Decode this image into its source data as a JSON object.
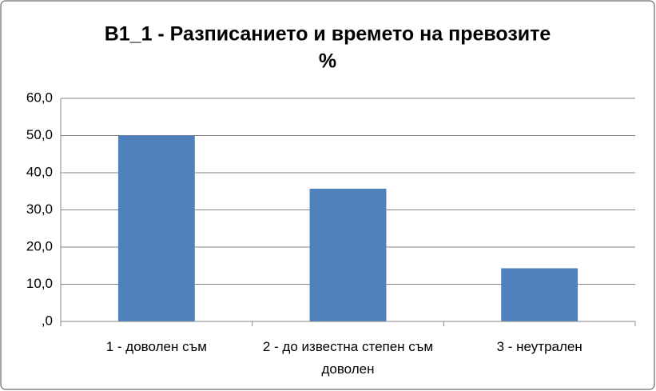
{
  "chart_data": {
    "type": "bar",
    "title": "B1_1 - Разписанието и времето на превозите",
    "subtitle": "%",
    "categories": [
      "1 - доволен съм",
      "2 - до известна степен съм доволен",
      "3 - неутрален"
    ],
    "values": [
      50.0,
      35.7,
      14.3
    ],
    "color": "#4f81bd",
    "ylim": [
      0,
      60
    ],
    "yticks": [
      {
        "value": 0,
        "label": ",0"
      },
      {
        "value": 10,
        "label": "10,0"
      },
      {
        "value": 20,
        "label": "20,0"
      },
      {
        "value": 30,
        "label": "30,0"
      },
      {
        "value": 40,
        "label": "40,0"
      },
      {
        "value": 50,
        "label": "50,0"
      },
      {
        "value": 60,
        "label": "60,0"
      }
    ],
    "grid": true
  }
}
